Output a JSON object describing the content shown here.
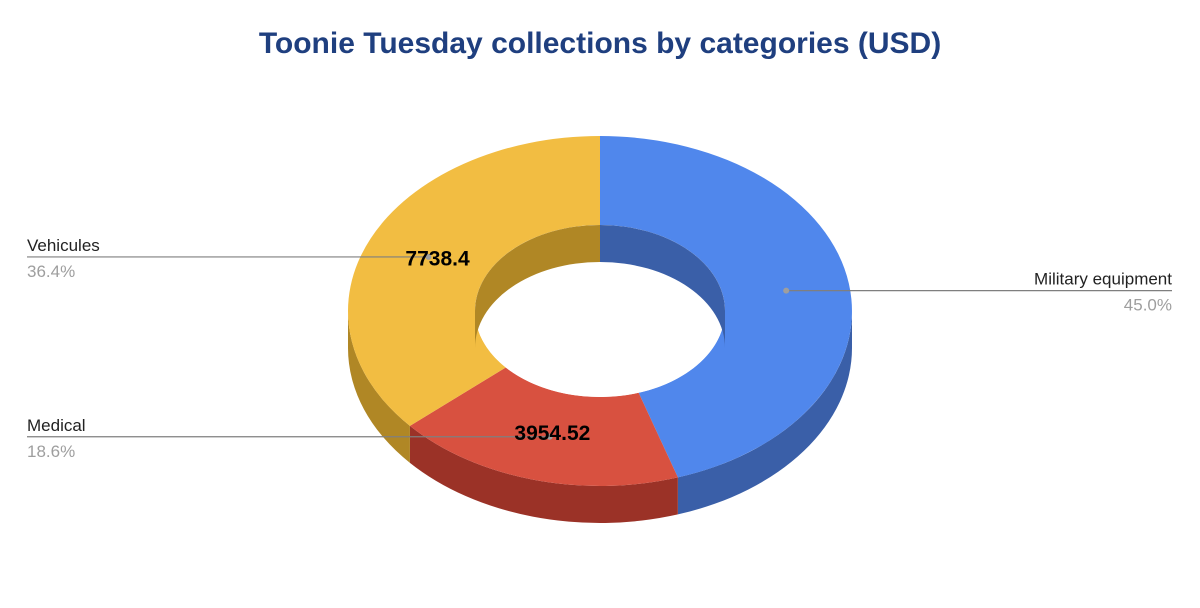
{
  "chart_data": {
    "type": "pie",
    "variant": "3d-donut",
    "title": "Toonie Tuesday collections by categories (USD)",
    "slices": [
      {
        "name": "Military equipment",
        "percent_label": "45.0%",
        "value_label": "",
        "color": "#5087ec",
        "side_color": "#3a5fa8",
        "inner_color": "#3a5fa8"
      },
      {
        "name": "Medical",
        "percent_label": "18.6%",
        "value_label": "3954.52",
        "color": "#d85140",
        "side_color": "#9b3227",
        "inner_color": "#9b3227"
      },
      {
        "name": "Vehicules",
        "percent_label": "36.4%",
        "value_label": "7738.4",
        "color": "#f2bd42",
        "side_color": "#b08725",
        "inner_color": "#b08725"
      }
    ],
    "values_shown": [
      3954.52,
      7738.4
    ],
    "legend": "none",
    "start": "top",
    "direction": "clockwise"
  }
}
